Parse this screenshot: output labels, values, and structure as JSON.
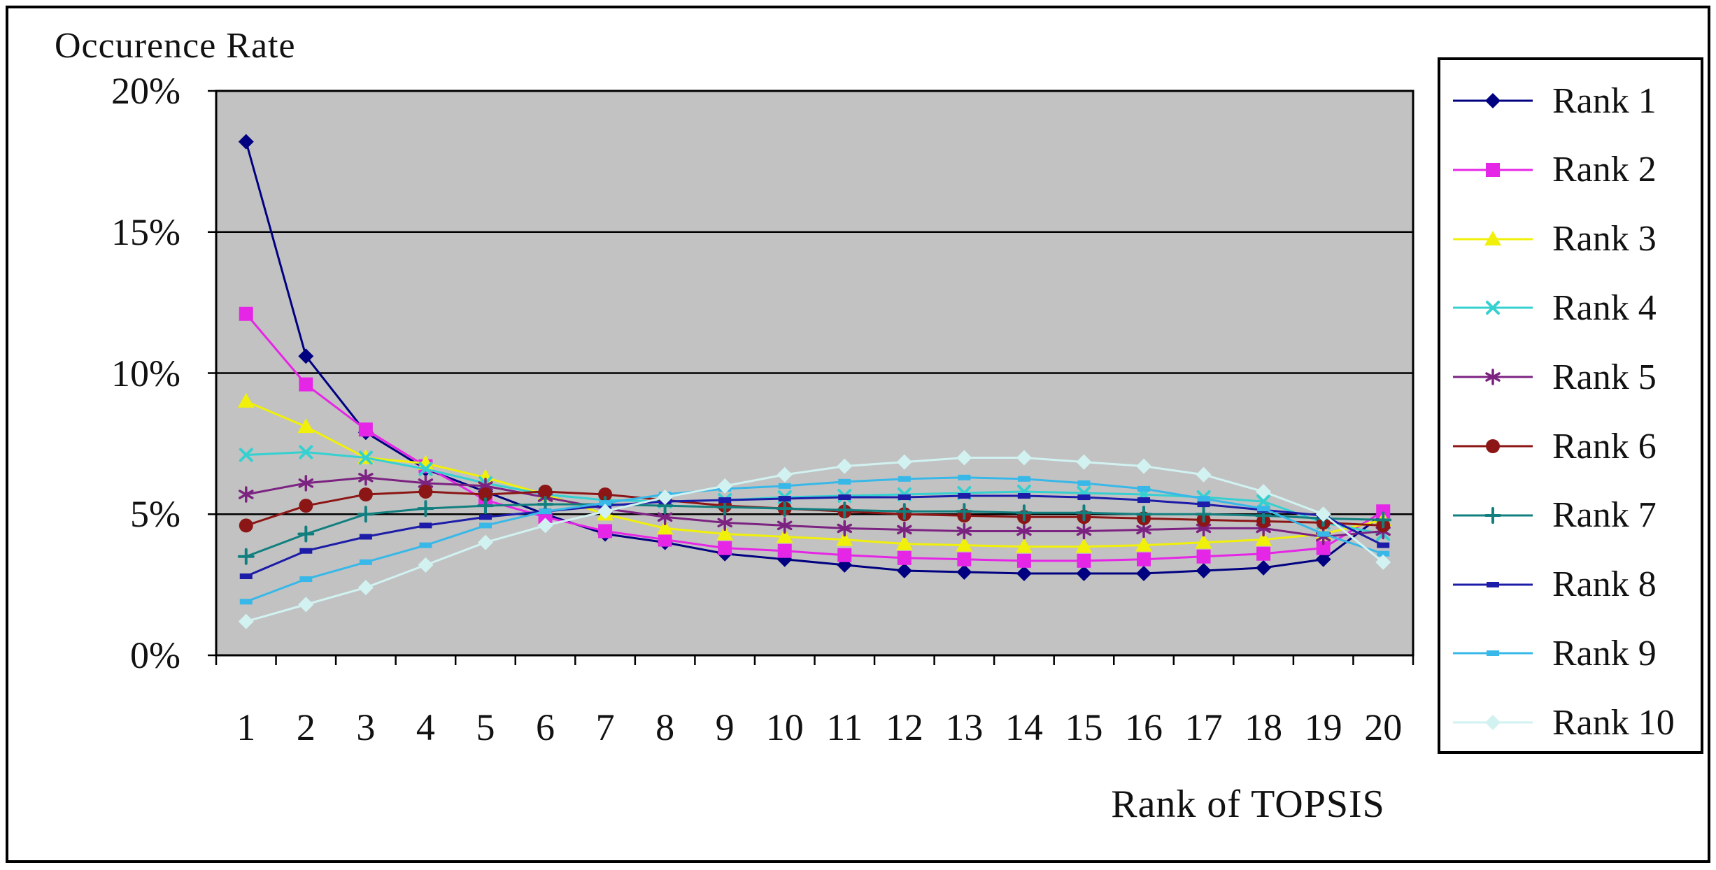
{
  "figure": {
    "background": "#ffffff",
    "border_color": "#000000"
  },
  "chart_data": {
    "type": "line",
    "title": "",
    "ylabel": "Occurence Rate",
    "xlabel": "Rank of TOPSIS",
    "plot_bg": "#c2c2c2",
    "grid": true,
    "gridline_color": "#000000",
    "legend_position": "right",
    "ylim": [
      0,
      20
    ],
    "y_ticks": [
      {
        "label": "0%",
        "value": 0
      },
      {
        "label": "5%",
        "value": 5
      },
      {
        "label": "10%",
        "value": 10
      },
      {
        "label": "15%",
        "value": 15
      },
      {
        "label": "20%",
        "value": 20
      }
    ],
    "categories": [
      1,
      2,
      3,
      4,
      5,
      6,
      7,
      8,
      9,
      10,
      11,
      12,
      13,
      14,
      15,
      16,
      17,
      18,
      19,
      20
    ],
    "series": [
      {
        "name": "Rank 1",
        "color": "#000080",
        "marker": "diamond",
        "values": [
          18.2,
          10.6,
          7.9,
          6.6,
          5.8,
          5.0,
          4.3,
          4.0,
          3.6,
          3.4,
          3.2,
          3.0,
          2.95,
          2.9,
          2.9,
          2.9,
          3.0,
          3.1,
          3.4,
          5.0
        ]
      },
      {
        "name": "Rank 2",
        "color": "#e626e6",
        "marker": "square",
        "values": [
          12.1,
          9.6,
          8.0,
          6.7,
          5.5,
          4.9,
          4.4,
          4.1,
          3.8,
          3.7,
          3.55,
          3.45,
          3.4,
          3.35,
          3.35,
          3.4,
          3.5,
          3.6,
          3.8,
          5.1
        ]
      },
      {
        "name": "Rank 3",
        "color": "#f0f00a",
        "marker": "triangle",
        "values": [
          9.0,
          8.1,
          7.0,
          6.8,
          6.3,
          5.7,
          5.0,
          4.5,
          4.3,
          4.2,
          4.1,
          3.95,
          3.9,
          3.85,
          3.85,
          3.9,
          4.0,
          4.1,
          4.3,
          4.8
        ]
      },
      {
        "name": "Rank 4",
        "color": "#35d0d0",
        "marker": "x",
        "values": [
          7.1,
          7.2,
          7.0,
          6.6,
          6.1,
          5.7,
          5.5,
          5.45,
          5.5,
          5.6,
          5.65,
          5.7,
          5.75,
          5.8,
          5.75,
          5.7,
          5.6,
          5.45,
          4.7,
          4.3
        ]
      },
      {
        "name": "Rank 5",
        "color": "#7c2382",
        "marker": "asterisk",
        "values": [
          5.7,
          6.1,
          6.3,
          6.1,
          6.0,
          5.6,
          5.2,
          4.9,
          4.7,
          4.6,
          4.5,
          4.45,
          4.4,
          4.4,
          4.4,
          4.45,
          4.5,
          4.5,
          4.2,
          4.4
        ]
      },
      {
        "name": "Rank 6",
        "color": "#8c1616",
        "marker": "circle",
        "values": [
          4.6,
          5.3,
          5.7,
          5.8,
          5.7,
          5.8,
          5.7,
          5.5,
          5.3,
          5.2,
          5.1,
          5.0,
          4.95,
          4.9,
          4.9,
          4.85,
          4.8,
          4.75,
          4.7,
          4.6
        ]
      },
      {
        "name": "Rank 7",
        "color": "#127f7f",
        "marker": "plus",
        "values": [
          3.5,
          4.3,
          5.0,
          5.2,
          5.3,
          5.35,
          5.35,
          5.3,
          5.25,
          5.2,
          5.15,
          5.1,
          5.1,
          5.05,
          5.05,
          5.0,
          5.0,
          4.95,
          4.85,
          4.8
        ]
      },
      {
        "name": "Rank 8",
        "color": "#1c1ca8",
        "marker": "dash",
        "values": [
          2.8,
          3.7,
          4.2,
          4.6,
          4.9,
          5.1,
          5.3,
          5.45,
          5.5,
          5.55,
          5.6,
          5.6,
          5.65,
          5.65,
          5.6,
          5.5,
          5.35,
          5.15,
          4.95,
          3.9
        ]
      },
      {
        "name": "Rank 9",
        "color": "#38b8e8",
        "marker": "dash",
        "values": [
          1.9,
          2.7,
          3.3,
          3.9,
          4.6,
          5.1,
          5.4,
          5.7,
          5.9,
          6.0,
          6.15,
          6.25,
          6.3,
          6.25,
          6.1,
          5.9,
          5.55,
          5.2,
          4.3,
          3.6
        ]
      },
      {
        "name": "Rank 10",
        "color": "#d2f2f2",
        "marker": "diamond",
        "values": [
          1.2,
          1.8,
          2.4,
          3.2,
          4.0,
          4.6,
          5.1,
          5.6,
          6.0,
          6.4,
          6.7,
          6.85,
          7.0,
          7.0,
          6.85,
          6.7,
          6.4,
          5.8,
          5.0,
          3.3
        ]
      }
    ]
  }
}
